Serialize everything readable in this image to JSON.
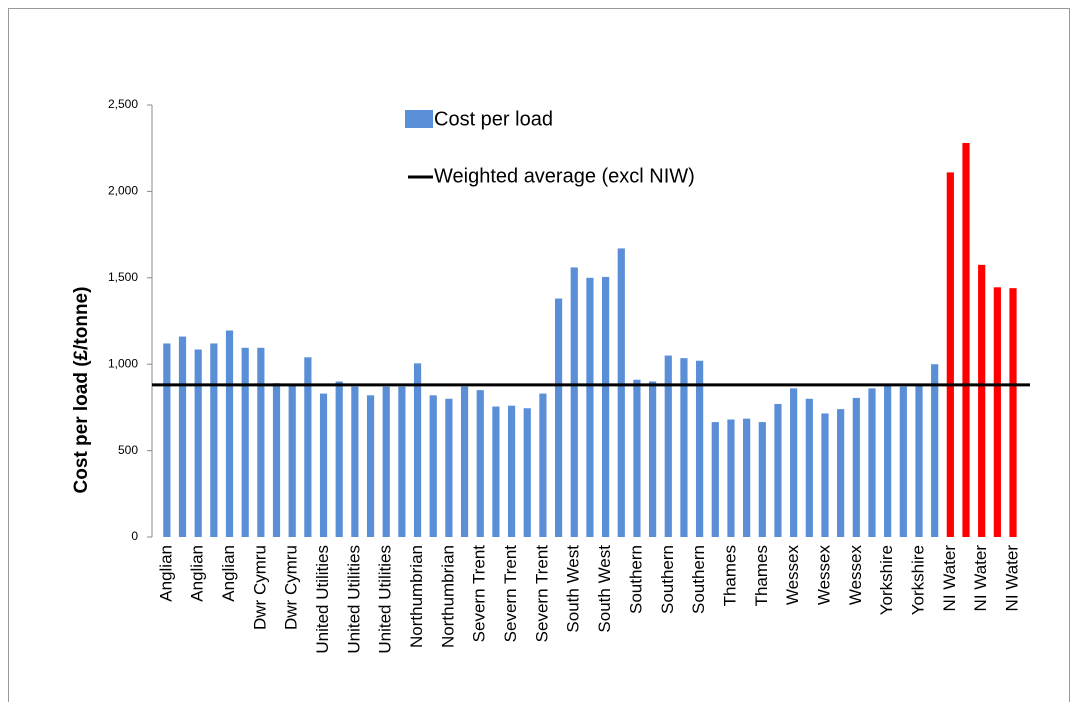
{
  "chart_data": {
    "type": "bar",
    "y_label": "Cost per load (£/tonne)",
    "categories": [
      "Anglian",
      null,
      "Anglian",
      null,
      "Anglian",
      null,
      "Dwr Cymru",
      null,
      "Dwr Cymru",
      null,
      "United Utilities",
      null,
      "United Utilities",
      null,
      "United Utilities",
      null,
      "Northumbrian",
      null,
      "Northumbrian",
      null,
      "Severn Trent",
      null,
      "Severn Trent",
      null,
      "Severn Trent",
      null,
      "South West",
      null,
      "South West",
      null,
      "Southern",
      null,
      "Southern",
      null,
      "Southern",
      null,
      "Thames",
      null,
      "Thames",
      null,
      "Wessex",
      null,
      "Wessex",
      null,
      "Wessex",
      null,
      "Yorkshire",
      null,
      "Yorkshire",
      null,
      "NI Water",
      null,
      "NI Water",
      null,
      "NI Water"
    ],
    "series": [
      {
        "name": "Cost per load",
        "color": "#5a8fd8",
        "values": [
          1120,
          1160,
          1085,
          1120,
          1195,
          1095,
          1095,
          890,
          880,
          1040,
          830,
          900,
          870,
          820,
          870,
          870,
          1005,
          820,
          800,
          870,
          850,
          755,
          760,
          745,
          830,
          1380,
          1560,
          1500,
          1505,
          1670,
          910,
          900,
          1050,
          1035,
          1020,
          665,
          680,
          685,
          665,
          770,
          860,
          800,
          715,
          740,
          805,
          860,
          875,
          870,
          875,
          1000,
          2110,
          2280,
          1575,
          1445,
          1440
        ],
        "colors": [
          "#5a8fd8",
          "#5a8fd8",
          "#5a8fd8",
          "#5a8fd8",
          "#5a8fd8",
          "#5a8fd8",
          "#5a8fd8",
          "#5a8fd8",
          "#5a8fd8",
          "#5a8fd8",
          "#5a8fd8",
          "#5a8fd8",
          "#5a8fd8",
          "#5a8fd8",
          "#5a8fd8",
          "#5a8fd8",
          "#5a8fd8",
          "#5a8fd8",
          "#5a8fd8",
          "#5a8fd8",
          "#5a8fd8",
          "#5a8fd8",
          "#5a8fd8",
          "#5a8fd8",
          "#5a8fd8",
          "#5a8fd8",
          "#5a8fd8",
          "#5a8fd8",
          "#5a8fd8",
          "#5a8fd8",
          "#5a8fd8",
          "#5a8fd8",
          "#5a8fd8",
          "#5a8fd8",
          "#5a8fd8",
          "#5a8fd8",
          "#5a8fd8",
          "#5a8fd8",
          "#5a8fd8",
          "#5a8fd8",
          "#5a8fd8",
          "#5a8fd8",
          "#5a8fd8",
          "#5a8fd8",
          "#5a8fd8",
          "#5a8fd8",
          "#5a8fd8",
          "#5a8fd8",
          "#5a8fd8",
          "#5a8fd8",
          "#ff0000",
          "#ff0000",
          "#ff0000",
          "#ff0000",
          "#ff0000"
        ]
      }
    ],
    "reference_line": {
      "name": "Weighted average (excl NIW)",
      "value": 880,
      "color": "#000000"
    },
    "ylim": [
      0,
      2500
    ],
    "yticks": [
      0,
      500,
      {
        "value": 1000,
        "label": "1,000"
      },
      {
        "value": 1500,
        "label": "1,500"
      },
      {
        "value": 2000,
        "label": "2,000"
      },
      {
        "value": 2500,
        "label": "2,500"
      }
    ],
    "grid": false
  }
}
